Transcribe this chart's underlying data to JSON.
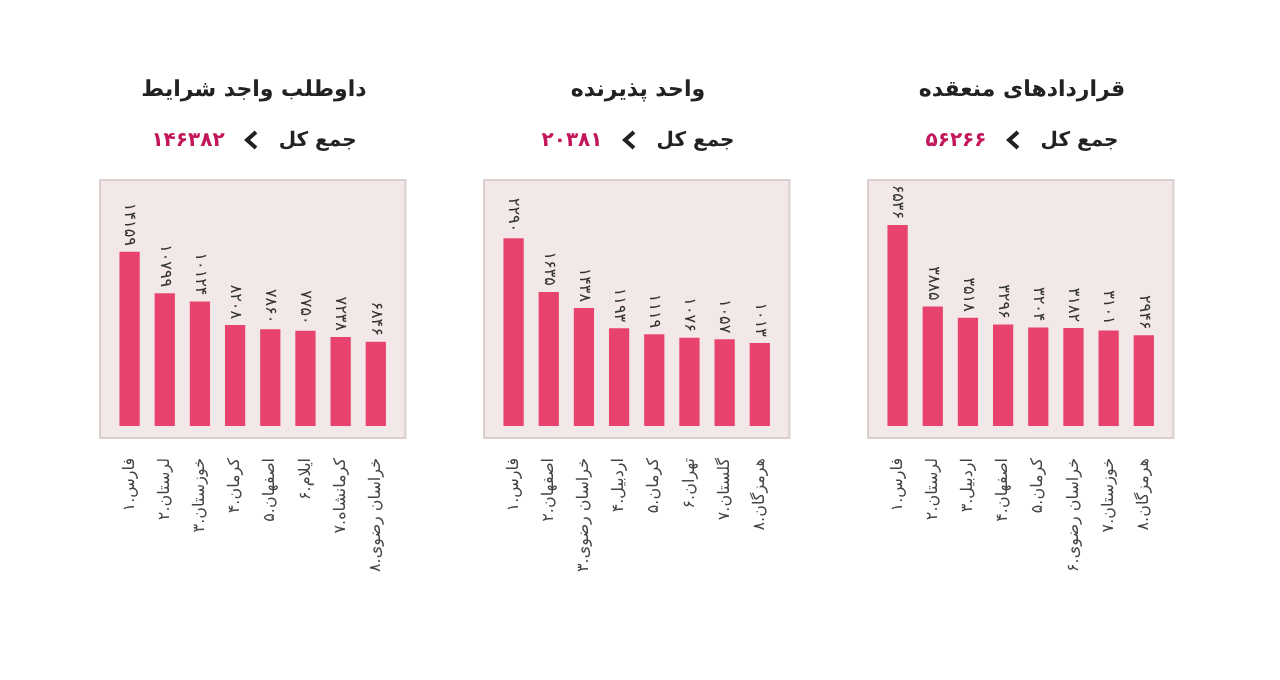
{
  "chart_data": [
    {
      "type": "bar",
      "title": "قراردادهای منعقده",
      "subtitle": "جمع کل",
      "annotations": [
        "۵۶۲۶۶"
      ],
      "color": "#e8436f",
      "categories": [
        "۱.فارس",
        "۲.لرستان",
        "۳.اردبیل",
        "۴.اصفهان",
        "۵.کرمان",
        "۶.خراسان رضوی",
        "۷.خوزستان",
        "۸.هرمزگان"
      ],
      "values": [
        6536,
        3885,
        3518,
        3296,
        3204,
        3182,
        3101,
        2946
      ],
      "value_labels": [
        "۶۵۳۶",
        "۳۸۸۵",
        "۳۵۱۸",
        "۳۲۹۶",
        "۳۲۰۴",
        "۳۱۸۲",
        "۳۱۰۱",
        "۲۹۴۶"
      ]
    },
    {
      "type": "bar",
      "title": "واحد پذیرنده",
      "subtitle": "جمع کل",
      "annotations": [
        "۲۰۳۸۱"
      ],
      "color": "#e8436f",
      "categories": [
        "۱.فارس",
        "۲.اصفهان",
        "۳.خراسان رضوی",
        "۴.اردبیل",
        "۵.کرمان",
        "۶.تهران",
        "۷.گلستان",
        "۸.هرمزگان"
      ],
      "values": [
        2290,
        1635,
        1438,
        1193,
        1119,
        1076,
        1057,
        1013
      ],
      "value_labels": [
        "۲۲۹۰",
        "۱۶۳۵",
        "۱۴۳۸",
        "۱۱۹۳",
        "۱۱۱۹",
        "۱۰۷۶",
        "۱۰۵۷",
        "۱۰۱۳"
      ]
    },
    {
      "type": "bar",
      "title": "داوطلب واجد شرایط",
      "subtitle": "جمع کل",
      "annotations": [
        "۱۴۶۳۸۲"
      ],
      "color": "#e8436f",
      "categories": [
        "۱.فارس",
        "۲.لرستان",
        "۳.خوزستان",
        "۴.کرمان",
        "۵.اصفهان",
        "۶.ایلام",
        "۷.کرمانشاه",
        "۸.خراسان رضوی"
      ],
      "values": [
        14159,
        10799,
        10124,
        8208,
        7860,
        7750,
        7238,
        6846
      ],
      "value_labels": [
        "۱۴۱۵۹",
        "۱۰۷۹۹",
        "۱۰۱۲۴",
        "۸۲۰۸",
        "۷۸۶۰",
        "۷۷۵۰",
        "۷۲۳۸",
        "۶۸۴۶"
      ]
    }
  ]
}
